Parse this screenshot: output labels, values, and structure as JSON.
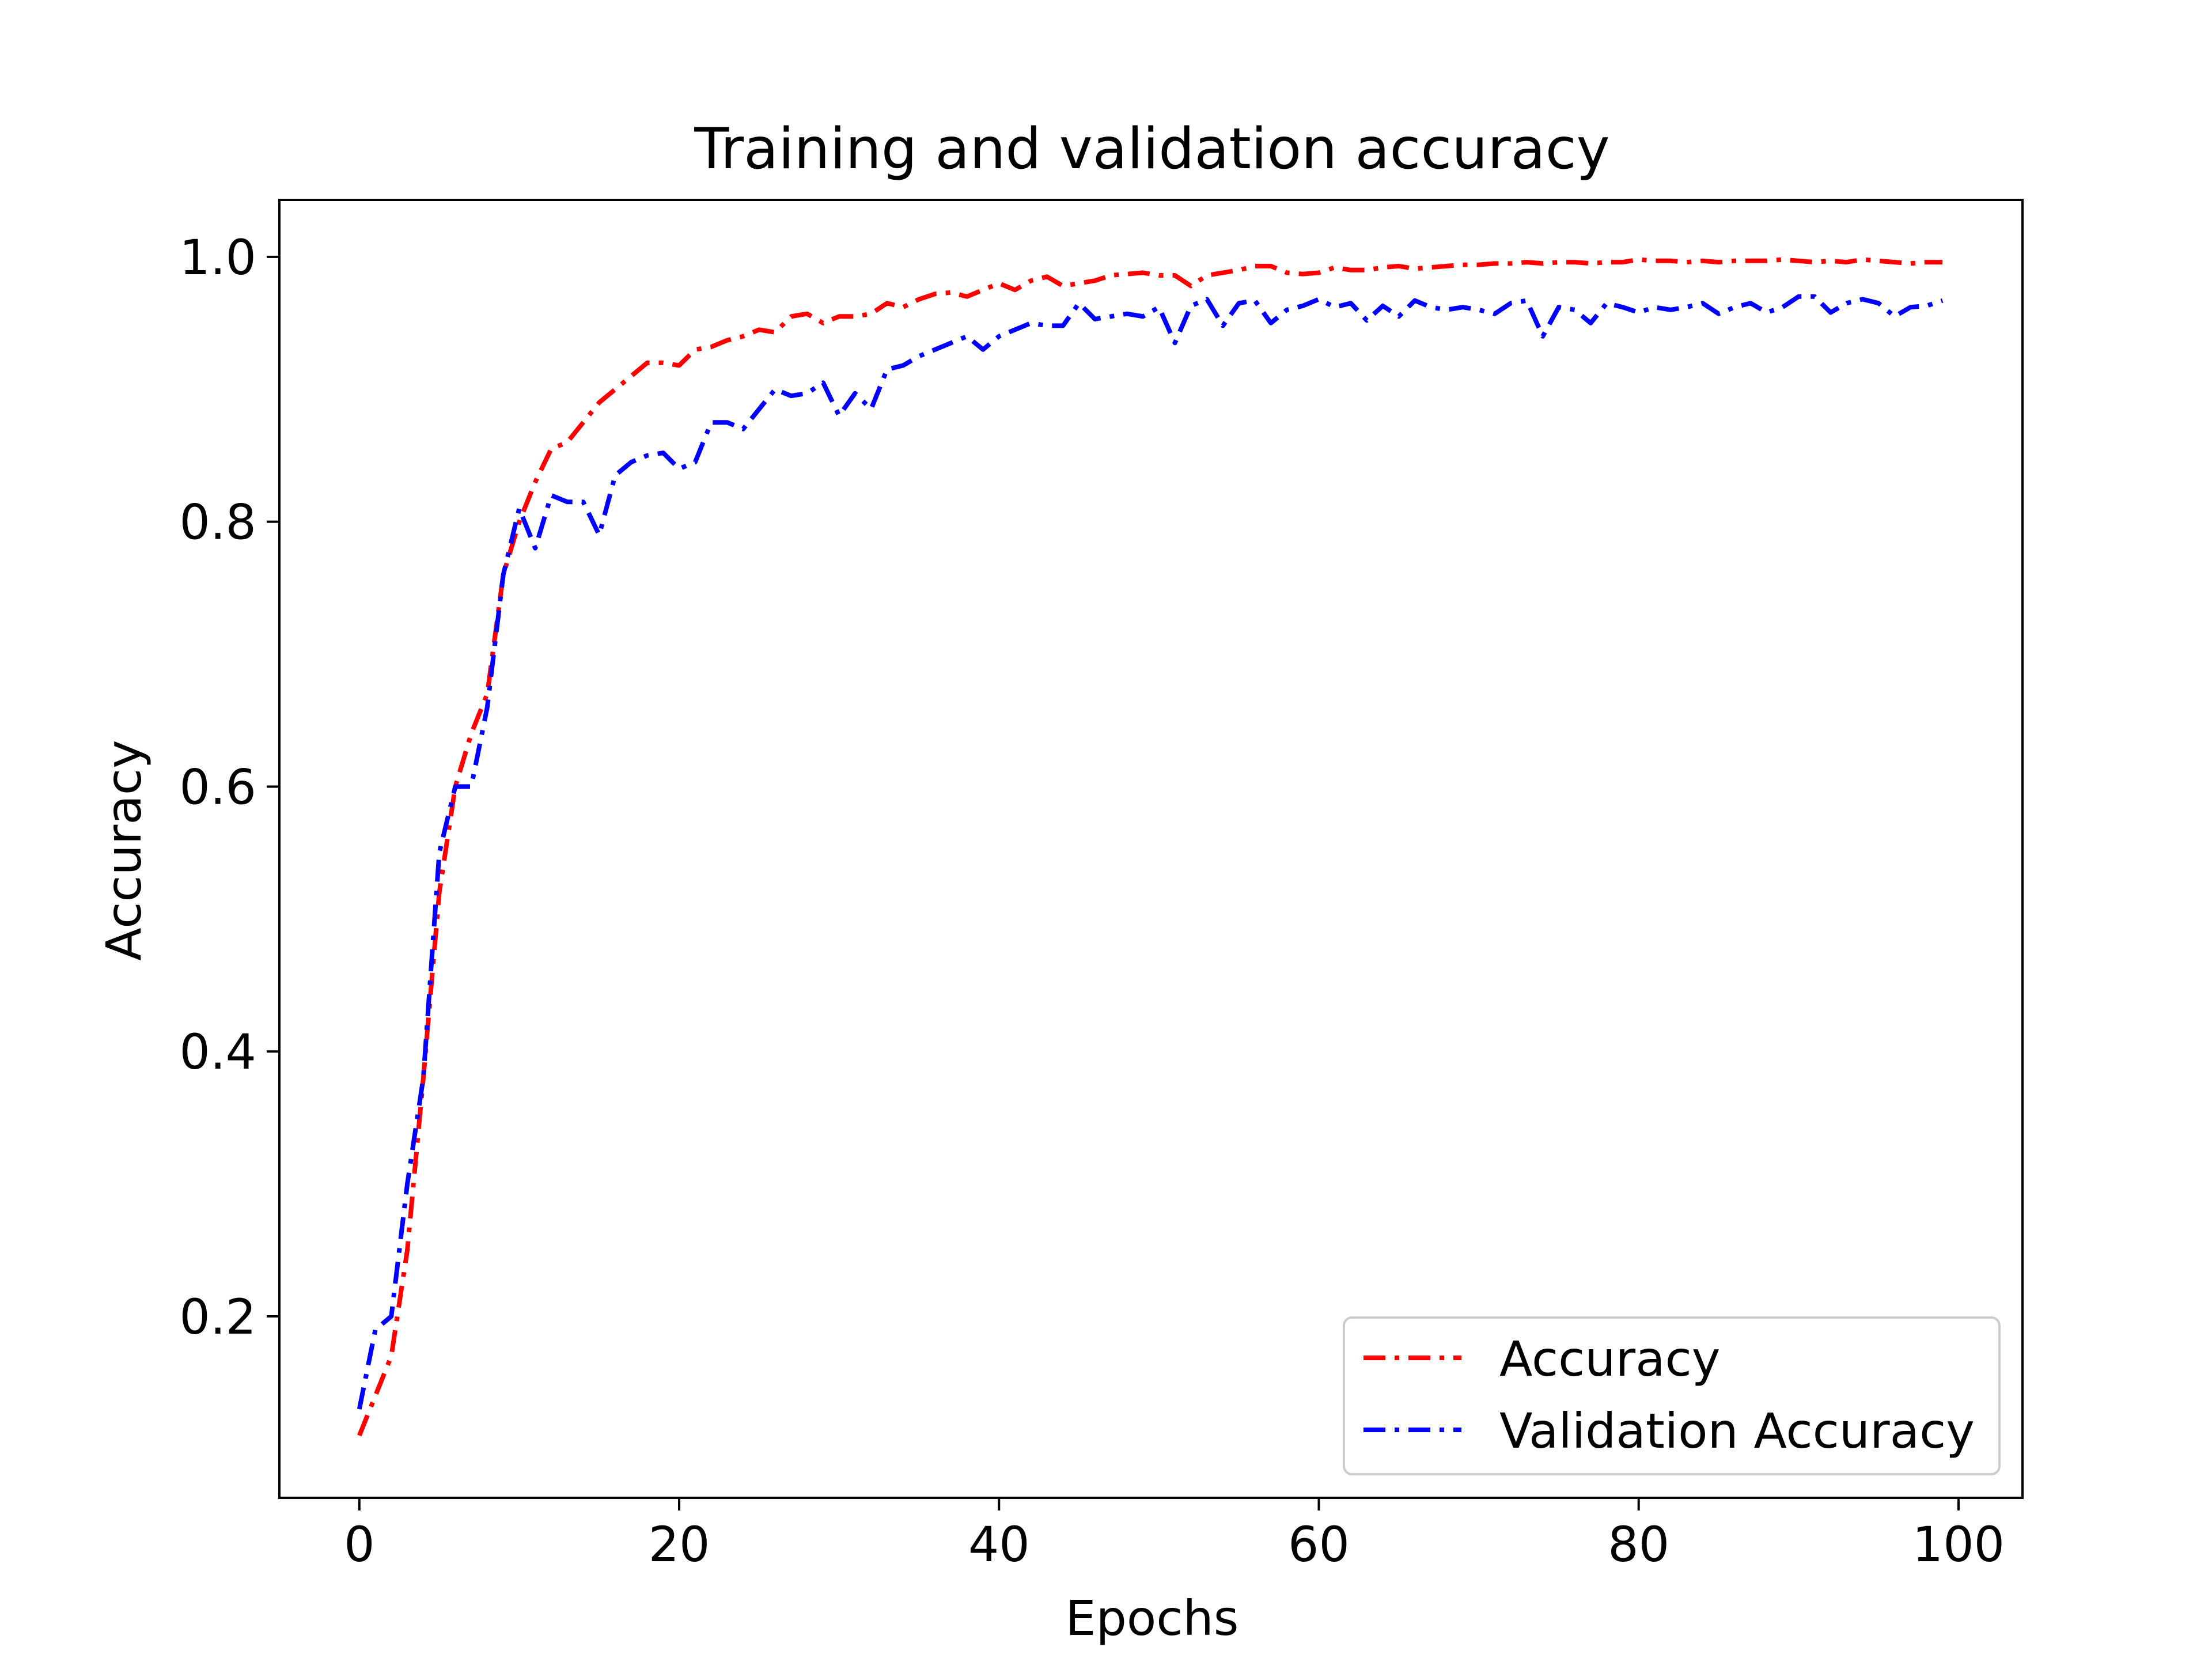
{
  "chart_data": {
    "type": "line",
    "title": "Training and validation accuracy",
    "xlabel": "Epochs",
    "ylabel": "Accuracy",
    "xlim": [
      -5,
      104
    ],
    "ylim": [
      0.063,
      1.043
    ],
    "xticks": [
      0,
      20,
      40,
      60,
      80,
      100
    ],
    "yticks": [
      0.2,
      0.4,
      0.6,
      0.8,
      1.0
    ],
    "xtick_labels": [
      "0",
      "20",
      "40",
      "60",
      "80",
      "100"
    ],
    "ytick_labels": [
      "0.2",
      "0.4",
      "0.6",
      "0.8",
      "1.0"
    ],
    "grid": false,
    "legend_position": "lower-right",
    "series": [
      {
        "name": "Accuracy",
        "color": "#ff0000",
        "linestyle": "dashdot",
        "x": [
          0,
          1,
          2,
          3,
          4,
          5,
          6,
          7,
          8,
          9,
          10,
          11,
          12,
          13,
          14,
          15,
          16,
          17,
          18,
          19,
          20,
          21,
          22,
          23,
          24,
          25,
          26,
          27,
          28,
          29,
          30,
          31,
          32,
          33,
          34,
          35,
          36,
          37,
          38,
          39,
          40,
          41,
          42,
          43,
          44,
          45,
          46,
          47,
          48,
          49,
          50,
          51,
          52,
          53,
          54,
          55,
          56,
          57,
          58,
          59,
          60,
          61,
          62,
          63,
          64,
          65,
          66,
          67,
          68,
          69,
          70,
          71,
          72,
          73,
          74,
          75,
          76,
          77,
          78,
          79,
          80,
          81,
          82,
          83,
          84,
          85,
          86,
          87,
          88,
          89,
          90,
          91,
          92,
          93,
          94,
          95,
          96,
          97,
          98,
          99
        ],
        "values": [
          0.11,
          0.14,
          0.17,
          0.25,
          0.38,
          0.52,
          0.6,
          0.64,
          0.67,
          0.76,
          0.8,
          0.83,
          0.855,
          0.86,
          0.875,
          0.89,
          0.9,
          0.91,
          0.92,
          0.92,
          0.918,
          0.93,
          0.932,
          0.937,
          0.94,
          0.945,
          0.943,
          0.955,
          0.957,
          0.95,
          0.955,
          0.955,
          0.957,
          0.965,
          0.962,
          0.968,
          0.972,
          0.973,
          0.97,
          0.975,
          0.98,
          0.975,
          0.982,
          0.985,
          0.978,
          0.98,
          0.982,
          0.986,
          0.987,
          0.988,
          0.986,
          0.986,
          0.978,
          0.986,
          0.988,
          0.99,
          0.993,
          0.993,
          0.988,
          0.987,
          0.988,
          0.992,
          0.99,
          0.99,
          0.992,
          0.993,
          0.991,
          0.992,
          0.993,
          0.994,
          0.994,
          0.995,
          0.995,
          0.996,
          0.995,
          0.996,
          0.996,
          0.995,
          0.996,
          0.996,
          0.998,
          0.997,
          0.997,
          0.996,
          0.997,
          0.996,
          0.997,
          0.997,
          0.997,
          0.998,
          0.997,
          0.996,
          0.997,
          0.996,
          0.998,
          0.997,
          0.996,
          0.995,
          0.996,
          0.996
        ]
      },
      {
        "name": "Validation Accuracy",
        "color": "#0000ff",
        "linestyle": "dashdot",
        "x": [
          0,
          1,
          2,
          3,
          4,
          5,
          6,
          7,
          8,
          9,
          10,
          11,
          12,
          13,
          14,
          15,
          16,
          17,
          18,
          19,
          20,
          21,
          22,
          23,
          24,
          25,
          26,
          27,
          28,
          29,
          30,
          31,
          32,
          33,
          34,
          35,
          36,
          37,
          38,
          39,
          40,
          41,
          42,
          43,
          44,
          45,
          46,
          47,
          48,
          49,
          50,
          51,
          52,
          53,
          54,
          55,
          56,
          57,
          58,
          59,
          60,
          61,
          62,
          63,
          64,
          65,
          66,
          67,
          68,
          69,
          70,
          71,
          72,
          73,
          74,
          75,
          76,
          77,
          78,
          79,
          80,
          81,
          82,
          83,
          84,
          85,
          86,
          87,
          88,
          89,
          90,
          91,
          92,
          93,
          94,
          95,
          96,
          97,
          98,
          99
        ],
        "values": [
          0.13,
          0.19,
          0.2,
          0.3,
          0.38,
          0.55,
          0.6,
          0.6,
          0.66,
          0.76,
          0.81,
          0.78,
          0.82,
          0.815,
          0.815,
          0.79,
          0.835,
          0.845,
          0.85,
          0.852,
          0.84,
          0.845,
          0.875,
          0.875,
          0.87,
          0.885,
          0.9,
          0.895,
          0.897,
          0.905,
          0.88,
          0.897,
          0.885,
          0.915,
          0.918,
          0.925,
          0.93,
          0.935,
          0.94,
          0.93,
          0.94,
          0.945,
          0.95,
          0.948,
          0.948,
          0.965,
          0.953,
          0.955,
          0.957,
          0.955,
          0.962,
          0.935,
          0.963,
          0.968,
          0.948,
          0.965,
          0.967,
          0.95,
          0.96,
          0.963,
          0.968,
          0.962,
          0.965,
          0.952,
          0.963,
          0.955,
          0.967,
          0.962,
          0.96,
          0.962,
          0.96,
          0.957,
          0.965,
          0.967,
          0.94,
          0.962,
          0.96,
          0.95,
          0.965,
          0.962,
          0.958,
          0.962,
          0.96,
          0.962,
          0.965,
          0.957,
          0.962,
          0.965,
          0.958,
          0.962,
          0.97,
          0.97,
          0.958,
          0.965,
          0.968,
          0.965,
          0.955,
          0.962,
          0.963,
          0.967
        ]
      }
    ]
  }
}
